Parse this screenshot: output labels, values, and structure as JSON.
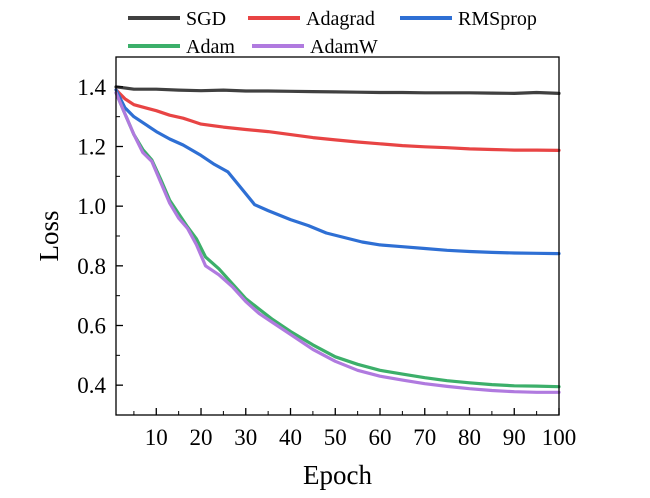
{
  "chart_data": {
    "type": "line",
    "title": "",
    "xlabel": "Epoch",
    "ylabel": "Loss",
    "xlim": [
      1,
      100
    ],
    "ylim": [
      0.3,
      1.5
    ],
    "x_ticks": [
      10,
      20,
      30,
      40,
      50,
      60,
      70,
      80,
      90,
      100
    ],
    "y_ticks": [
      0.4,
      0.6,
      0.8,
      1.0,
      1.2,
      1.4
    ],
    "x_tick_labels": [
      "10",
      "20",
      "30",
      "40",
      "50",
      "60",
      "70",
      "80",
      "90",
      "100"
    ],
    "y_tick_labels": [
      "0.4",
      "0.6",
      "0.8",
      "1.0",
      "1.2",
      "1.4"
    ],
    "grid": false,
    "legend_position": "top",
    "series": [
      {
        "name": "SGD",
        "color": "#404040",
        "points": [
          [
            1,
            1.4
          ],
          [
            5,
            1.392
          ],
          [
            10,
            1.392
          ],
          [
            15,
            1.389
          ],
          [
            20,
            1.387
          ],
          [
            25,
            1.389
          ],
          [
            30,
            1.386
          ],
          [
            35,
            1.386
          ],
          [
            40,
            1.385
          ],
          [
            45,
            1.384
          ],
          [
            50,
            1.383
          ],
          [
            55,
            1.382
          ],
          [
            60,
            1.381
          ],
          [
            65,
            1.381
          ],
          [
            70,
            1.38
          ],
          [
            75,
            1.38
          ],
          [
            80,
            1.38
          ],
          [
            85,
            1.379
          ],
          [
            90,
            1.378
          ],
          [
            95,
            1.381
          ],
          [
            100,
            1.378
          ]
        ]
      },
      {
        "name": "Adagrad",
        "color": "#e84444",
        "points": [
          [
            1,
            1.39
          ],
          [
            3,
            1.36
          ],
          [
            5,
            1.34
          ],
          [
            8,
            1.328
          ],
          [
            10,
            1.32
          ],
          [
            13,
            1.305
          ],
          [
            16,
            1.295
          ],
          [
            18,
            1.285
          ],
          [
            20,
            1.275
          ],
          [
            25,
            1.265
          ],
          [
            30,
            1.257
          ],
          [
            35,
            1.25
          ],
          [
            40,
            1.24
          ],
          [
            45,
            1.23
          ],
          [
            50,
            1.222
          ],
          [
            55,
            1.215
          ],
          [
            60,
            1.209
          ],
          [
            65,
            1.203
          ],
          [
            70,
            1.199
          ],
          [
            75,
            1.196
          ],
          [
            80,
            1.192
          ],
          [
            85,
            1.19
          ],
          [
            90,
            1.188
          ],
          [
            95,
            1.188
          ],
          [
            100,
            1.187
          ]
        ]
      },
      {
        "name": "RMSprop",
        "color": "#2e6fd4",
        "points": [
          [
            1,
            1.39
          ],
          [
            3,
            1.33
          ],
          [
            5,
            1.3
          ],
          [
            8,
            1.27
          ],
          [
            10,
            1.25
          ],
          [
            13,
            1.225
          ],
          [
            16,
            1.205
          ],
          [
            20,
            1.17
          ],
          [
            23,
            1.14
          ],
          [
            26,
            1.115
          ],
          [
            29,
            1.06
          ],
          [
            32,
            1.005
          ],
          [
            35,
            0.985
          ],
          [
            40,
            0.955
          ],
          [
            44,
            0.935
          ],
          [
            48,
            0.91
          ],
          [
            52,
            0.895
          ],
          [
            56,
            0.88
          ],
          [
            60,
            0.87
          ],
          [
            65,
            0.864
          ],
          [
            70,
            0.858
          ],
          [
            75,
            0.852
          ],
          [
            80,
            0.848
          ],
          [
            85,
            0.845
          ],
          [
            90,
            0.843
          ],
          [
            95,
            0.842
          ],
          [
            100,
            0.841
          ]
        ]
      },
      {
        "name": "Adam",
        "color": "#3caf6a",
        "points": [
          [
            1,
            1.38
          ],
          [
            3,
            1.31
          ],
          [
            5,
            1.24
          ],
          [
            7,
            1.19
          ],
          [
            9,
            1.155
          ],
          [
            11,
            1.09
          ],
          [
            13,
            1.02
          ],
          [
            15,
            0.975
          ],
          [
            17,
            0.93
          ],
          [
            19,
            0.89
          ],
          [
            21,
            0.83
          ],
          [
            24,
            0.79
          ],
          [
            27,
            0.74
          ],
          [
            30,
            0.69
          ],
          [
            33,
            0.655
          ],
          [
            36,
            0.62
          ],
          [
            40,
            0.58
          ],
          [
            45,
            0.535
          ],
          [
            50,
            0.495
          ],
          [
            55,
            0.47
          ],
          [
            60,
            0.45
          ],
          [
            65,
            0.437
          ],
          [
            70,
            0.425
          ],
          [
            75,
            0.415
          ],
          [
            80,
            0.408
          ],
          [
            85,
            0.402
          ],
          [
            90,
            0.398
          ],
          [
            95,
            0.397
          ],
          [
            100,
            0.395
          ]
        ]
      },
      {
        "name": "AdamW",
        "color": "#b07adf",
        "points": [
          [
            1,
            1.38
          ],
          [
            3,
            1.31
          ],
          [
            5,
            1.24
          ],
          [
            7,
            1.18
          ],
          [
            9,
            1.15
          ],
          [
            11,
            1.08
          ],
          [
            13,
            1.01
          ],
          [
            15,
            0.96
          ],
          [
            17,
            0.925
          ],
          [
            19,
            0.87
          ],
          [
            21,
            0.8
          ],
          [
            24,
            0.77
          ],
          [
            27,
            0.73
          ],
          [
            30,
            0.68
          ],
          [
            33,
            0.64
          ],
          [
            36,
            0.61
          ],
          [
            40,
            0.57
          ],
          [
            45,
            0.52
          ],
          [
            50,
            0.48
          ],
          [
            55,
            0.45
          ],
          [
            60,
            0.43
          ],
          [
            65,
            0.417
          ],
          [
            70,
            0.405
          ],
          [
            75,
            0.396
          ],
          [
            80,
            0.388
          ],
          [
            85,
            0.382
          ],
          [
            90,
            0.378
          ],
          [
            95,
            0.376
          ],
          [
            100,
            0.376
          ]
        ]
      }
    ]
  }
}
